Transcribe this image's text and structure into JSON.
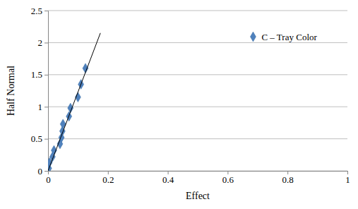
{
  "chart_data": {
    "type": "scatter",
    "x_label": "Effect",
    "y_label": "Half Normal",
    "xlim": [
      0,
      1
    ],
    "xticks": [
      0,
      0.2,
      0.4,
      0.6,
      0.8,
      1
    ],
    "ylim": [
      0,
      2.5
    ],
    "yticks": [
      0,
      0.5,
      1,
      1.5,
      2,
      2.5
    ],
    "grid": true,
    "legend": "upper right",
    "series": [
      {
        "name": "C – Tray Color",
        "type": "scatter",
        "marker": "diamond",
        "color": "#4f81bd",
        "x": [
          0.003,
          0.005,
          0.015,
          0.02,
          0.04,
          0.045,
          0.048,
          0.05,
          0.07,
          0.075,
          0.1,
          0.11,
          0.125
        ],
        "values": [
          0.04,
          0.13,
          0.22,
          0.32,
          0.42,
          0.52,
          0.62,
          0.73,
          0.85,
          0.98,
          1.15,
          1.35,
          1.6
        ]
      },
      {
        "type": "line",
        "line_style": "solid",
        "color": "#000000",
        "x": [
          0,
          0.175
        ],
        "values": [
          0,
          2.15
        ]
      }
    ]
  }
}
